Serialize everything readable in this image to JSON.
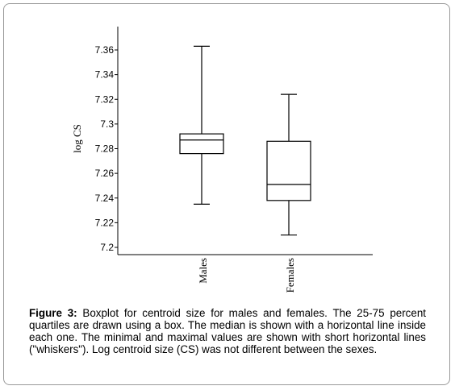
{
  "chart_data": {
    "type": "boxplot",
    "ylabel": "log CS",
    "ylim": [
      7.2,
      7.37
    ],
    "yticks": [
      7.2,
      7.22,
      7.24,
      7.26,
      7.28,
      7.3,
      7.32,
      7.34,
      7.36
    ],
    "ytick_labels": [
      "7.2",
      "7.22",
      "7.24",
      "7.26",
      "7.28",
      "7.3",
      "7.32",
      "7.34",
      "7.36"
    ],
    "categories": [
      "Males",
      "Females"
    ],
    "boxes": [
      {
        "category": "Males",
        "min": 7.235,
        "q1": 7.276,
        "median": 7.287,
        "q3": 7.292,
        "max": 7.363
      },
      {
        "category": "Females",
        "min": 7.21,
        "q1": 7.238,
        "median": 7.251,
        "q3": 7.286,
        "max": 7.324
      }
    ]
  },
  "caption": {
    "label": "Figure 3:",
    "text": " Boxplot for centroid size for males and females. The 25-75 percent quartiles are drawn using a box. The median is shown with a horizontal line inside each one. The minimal and maximal values are shown with short horizontal lines (\"whiskers\").  Log centroid size (CS) was not different between the sexes."
  }
}
